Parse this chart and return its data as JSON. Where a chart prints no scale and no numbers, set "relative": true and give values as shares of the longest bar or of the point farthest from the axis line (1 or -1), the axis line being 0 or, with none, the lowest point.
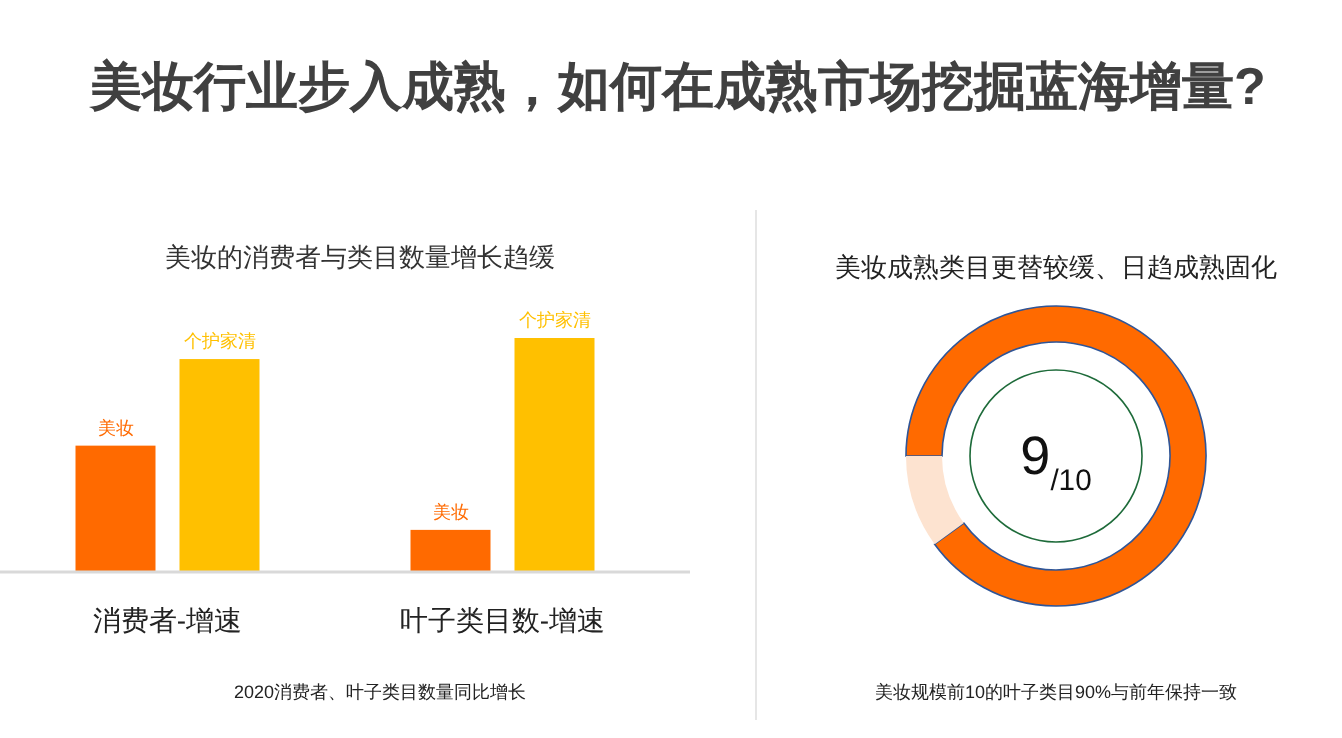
{
  "chart_data": [
    {
      "type": "other",
      "title": "美妆行业步入成熟，如何在成熟市场挖掘蓝海增量?"
    },
    {
      "type": "bar",
      "title": "美妆的消费者与类目数量增长趋缓",
      "categories": [
        "消费者-增速",
        "叶子类目数-增速"
      ],
      "relative": true,
      "legend": false,
      "series": [
        {
          "name": "美妆",
          "color": "#ff6a00",
          "values": [
            0.54,
            0.18
          ]
        },
        {
          "name": "个护家清",
          "color": "#ffc000",
          "values": [
            0.91,
            1
          ]
        }
      ],
      "annotations": [
        "2020消费者、叶子类目数量同比增长"
      ]
    },
    {
      "type": "donut",
      "title": "美妆成熟类目更替较缓、日趋成熟固化",
      "categories": [
        null,
        null
      ],
      "values": [
        90,
        10
      ],
      "colors": [
        "#ff6a00",
        "#fde3d0"
      ],
      "annotations": [
        "9$_{/10}$",
        "美妆规模前10的叶子类目90%与前年保持一致"
      ]
    }
  ]
}
